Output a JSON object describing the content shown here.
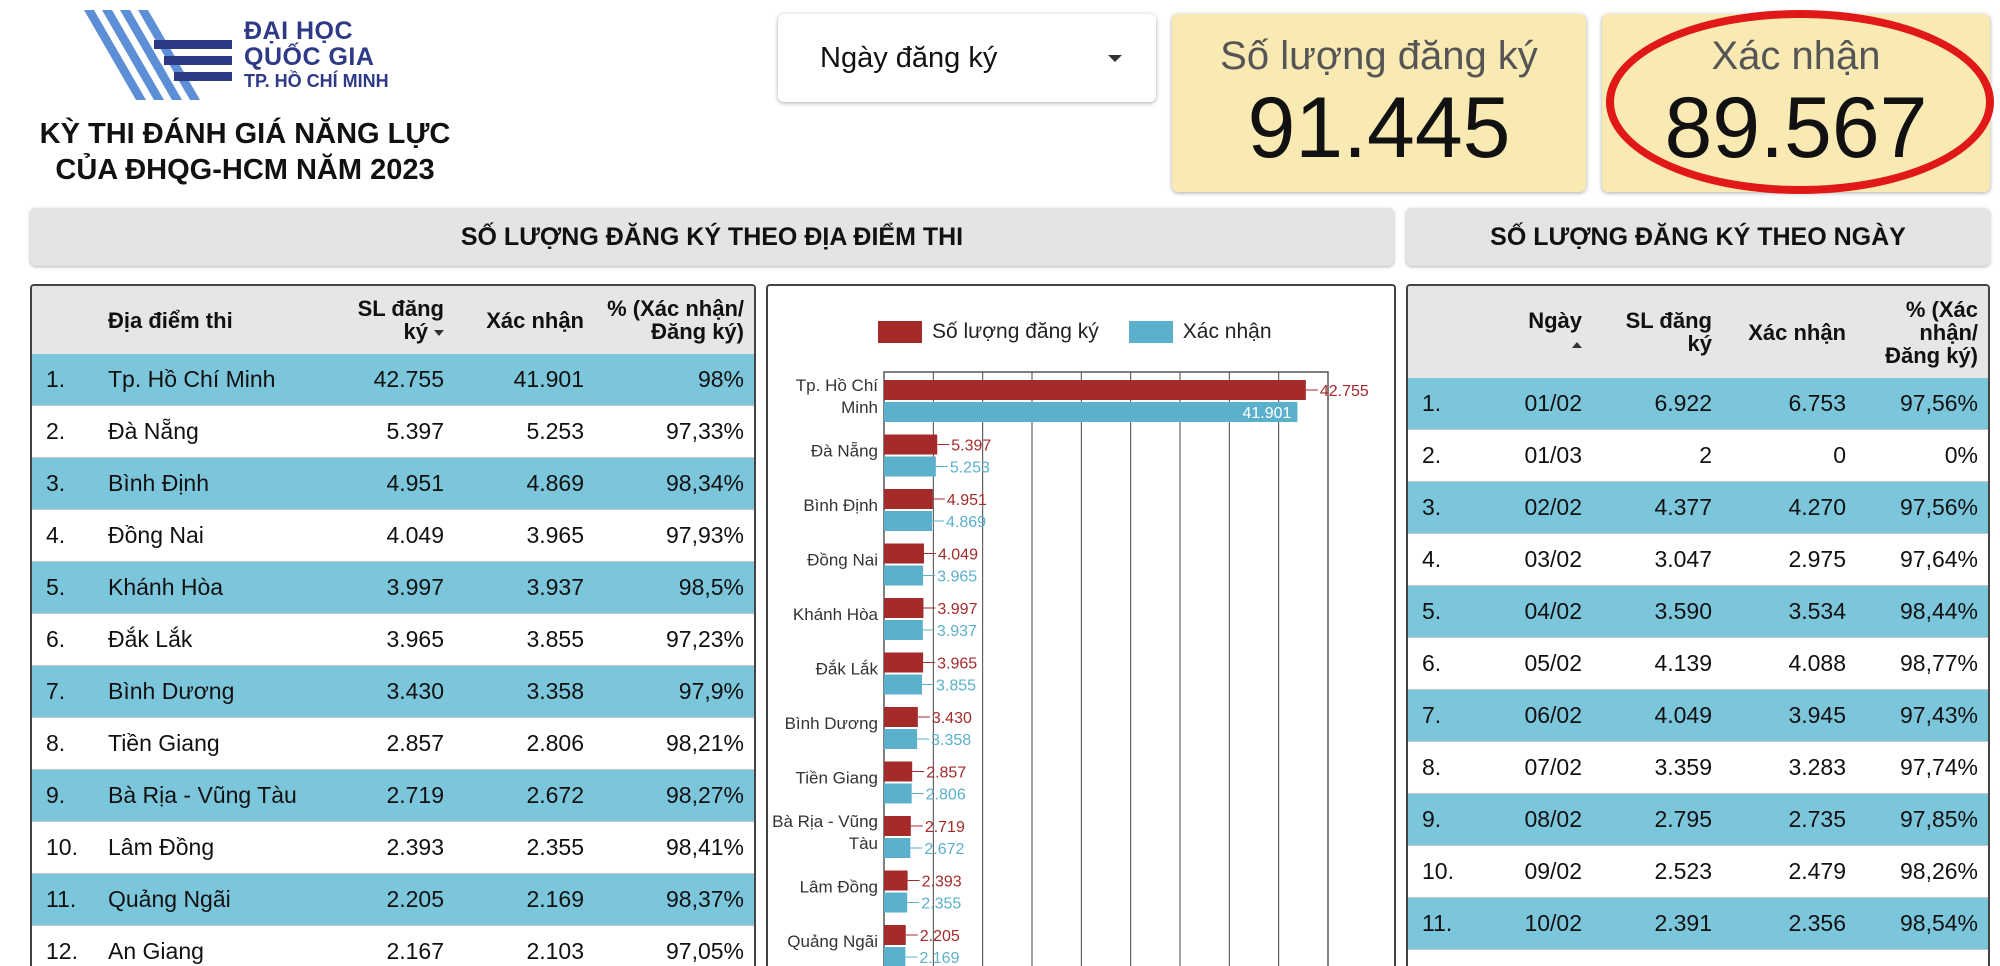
{
  "header": {
    "logo_line1": "ĐẠI HỌC",
    "logo_line2": "QUỐC GIA",
    "logo_line3": "TP. HỒ CHÍ MINH",
    "title_line1": "KỲ THI ĐÁNH GIÁ NĂNG LỰC",
    "title_line2": "CỦA ĐHQG-HCM NĂM 2023"
  },
  "filter": {
    "label": "Ngày đăng ký"
  },
  "kpis": {
    "registered_label": "Số lượng đăng ký",
    "registered_value": "91.445",
    "confirmed_label": "Xác nhận",
    "confirmed_value": "89.567"
  },
  "sections": {
    "by_location": "SỐ LƯỢNG ĐĂNG KÝ THEO ĐỊA ĐIỂM THI",
    "by_date": "SỐ LƯỢNG ĐĂNG KÝ THEO NGÀY"
  },
  "location_table": {
    "headers": {
      "place": "Địa điểm thi",
      "registered_l1": "SL đăng",
      "registered_l2": "ký",
      "confirmed": "Xác nhận",
      "pct_l1": "% (Xác nhận/",
      "pct_l2": "Đăng ký)"
    },
    "rows": [
      {
        "idx": "1.",
        "place": "Tp. Hồ Chí Minh",
        "registered": "42.755",
        "confirmed": "41.901",
        "pct": "98%"
      },
      {
        "idx": "2.",
        "place": "Đà Nẵng",
        "registered": "5.397",
        "confirmed": "5.253",
        "pct": "97,33%"
      },
      {
        "idx": "3.",
        "place": "Bình Định",
        "registered": "4.951",
        "confirmed": "4.869",
        "pct": "98,34%"
      },
      {
        "idx": "4.",
        "place": "Đồng Nai",
        "registered": "4.049",
        "confirmed": "3.965",
        "pct": "97,93%"
      },
      {
        "idx": "5.",
        "place": "Khánh Hòa",
        "registered": "3.997",
        "confirmed": "3.937",
        "pct": "98,5%"
      },
      {
        "idx": "6.",
        "place": "Đắk Lắk",
        "registered": "3.965",
        "confirmed": "3.855",
        "pct": "97,23%"
      },
      {
        "idx": "7.",
        "place": "Bình Dương",
        "registered": "3.430",
        "confirmed": "3.358",
        "pct": "97,9%"
      },
      {
        "idx": "8.",
        "place": "Tiền Giang",
        "registered": "2.857",
        "confirmed": "2.806",
        "pct": "98,21%"
      },
      {
        "idx": "9.",
        "place": "Bà Rịa - Vũng Tàu",
        "registered": "2.719",
        "confirmed": "2.672",
        "pct": "98,27%"
      },
      {
        "idx": "10.",
        "place": "Lâm Đồng",
        "registered": "2.393",
        "confirmed": "2.355",
        "pct": "98,41%"
      },
      {
        "idx": "11.",
        "place": "Quảng Ngãi",
        "registered": "2.205",
        "confirmed": "2.169",
        "pct": "98,37%"
      },
      {
        "idx": "12.",
        "place": "An Giang",
        "registered": "2.167",
        "confirmed": "2.103",
        "pct": "97,05%"
      }
    ]
  },
  "date_table": {
    "headers": {
      "date": "Ngày",
      "registered_l1": "SL đăng",
      "registered_l2": "ký",
      "confirmed": "Xác nhận",
      "pct_l1": "% (Xác",
      "pct_l2": "nhận/",
      "pct_l3": "Đăng ký)"
    },
    "rows": [
      {
        "idx": "1.",
        "date": "01/02",
        "registered": "6.922",
        "confirmed": "6.753",
        "pct": "97,56%"
      },
      {
        "idx": "2.",
        "date": "01/03",
        "registered": "2",
        "confirmed": "0",
        "pct": "0%"
      },
      {
        "idx": "3.",
        "date": "02/02",
        "registered": "4.377",
        "confirmed": "4.270",
        "pct": "97,56%"
      },
      {
        "idx": "4.",
        "date": "03/02",
        "registered": "3.047",
        "confirmed": "2.975",
        "pct": "97,64%"
      },
      {
        "idx": "5.",
        "date": "04/02",
        "registered": "3.590",
        "confirmed": "3.534",
        "pct": "98,44%"
      },
      {
        "idx": "6.",
        "date": "05/02",
        "registered": "4.139",
        "confirmed": "4.088",
        "pct": "98,77%"
      },
      {
        "idx": "7.",
        "date": "06/02",
        "registered": "4.049",
        "confirmed": "3.945",
        "pct": "97,43%"
      },
      {
        "idx": "8.",
        "date": "07/02",
        "registered": "3.359",
        "confirmed": "3.283",
        "pct": "97,74%"
      },
      {
        "idx": "9.",
        "date": "08/02",
        "registered": "2.795",
        "confirmed": "2.735",
        "pct": "97,85%"
      },
      {
        "idx": "10.",
        "date": "09/02",
        "registered": "2.523",
        "confirmed": "2.479",
        "pct": "98,26%"
      },
      {
        "idx": "11.",
        "date": "10/02",
        "registered": "2.391",
        "confirmed": "2.356",
        "pct": "98,54%"
      }
    ]
  },
  "colors": {
    "registered": "#a52a2a",
    "confirmed": "#5bb0cb",
    "row_highlight": "#7cc6dc",
    "kpi_bg": "#f9e9b3",
    "circle": "#e01818"
  },
  "chart_data": {
    "type": "bar",
    "orientation": "horizontal",
    "categories": [
      [
        "Tp. Hồ Chí",
        "Minh"
      ],
      [
        "Đà Nẵng"
      ],
      [
        "Bình Định"
      ],
      [
        "Đồng Nai"
      ],
      [
        "Khánh Hòa"
      ],
      [
        "Đắk Lắk"
      ],
      [
        "Bình Dương"
      ],
      [
        "Tiền Giang"
      ],
      [
        "Bà Rịa - Vũng",
        "Tàu"
      ],
      [
        "Lâm Đồng"
      ],
      [
        "Quảng Ngãi"
      ]
    ],
    "series": [
      {
        "name": "Số lượng đăng ký",
        "values": [
          42755,
          5397,
          4951,
          4049,
          3997,
          3965,
          3430,
          2857,
          2719,
          2393,
          2205
        ],
        "labels": [
          "42.755",
          "5.397",
          "4.951",
          "4.049",
          "3.997",
          "3.965",
          "3.430",
          "2.857",
          "2.719",
          "2.393",
          "2.205"
        ]
      },
      {
        "name": "Xác nhận",
        "values": [
          41901,
          5253,
          4869,
          3965,
          3937,
          3855,
          3358,
          2806,
          2672,
          2355,
          2169
        ],
        "labels": [
          "41.901",
          "5.253",
          "4.869",
          "3.965",
          "3.937",
          "3.855",
          "3.358",
          "2.806",
          "2.672",
          "2.355",
          "2.169"
        ]
      }
    ],
    "xlim": [
      0,
      45000
    ],
    "grid": true,
    "legend": "top"
  }
}
